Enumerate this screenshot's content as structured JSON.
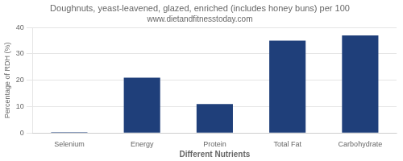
{
  "chart_data": {
    "type": "bar",
    "title": "Doughnuts, yeast-leavened, glazed, enriched (includes honey buns) per 100",
    "subtitle": "www.dietandfitnesstoday.com",
    "xlabel": "Different Nutrients",
    "ylabel": "Percentage of RDH (%)",
    "categories": [
      "Selenium",
      "Energy",
      "Protein",
      "Total Fat",
      "Carbohydrate"
    ],
    "values": [
      0.3,
      21,
      11,
      35,
      37
    ],
    "color": "#1F3F7A",
    "ylim": [
      0,
      40
    ],
    "yticks": [
      0,
      10,
      20,
      30,
      40
    ],
    "grid": "y"
  }
}
